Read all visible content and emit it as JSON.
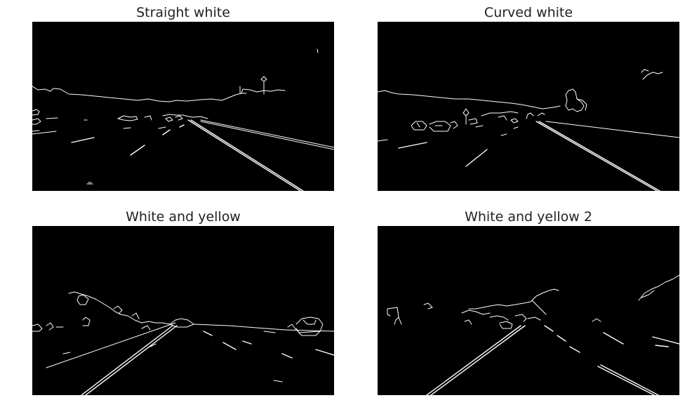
{
  "figure": {
    "panels": [
      {
        "title": "Straight white",
        "image": "canny-edge-road-image"
      },
      {
        "title": "Curved white",
        "image": "canny-edge-road-image"
      },
      {
        "title": "White and yellow",
        "image": "canny-edge-road-image"
      },
      {
        "title": "White and yellow 2",
        "image": "canny-edge-road-image"
      }
    ],
    "colors": {
      "background": "#ffffff",
      "image_background": "#000000",
      "edges": "#ffffff",
      "title_text": "#222222"
    }
  }
}
